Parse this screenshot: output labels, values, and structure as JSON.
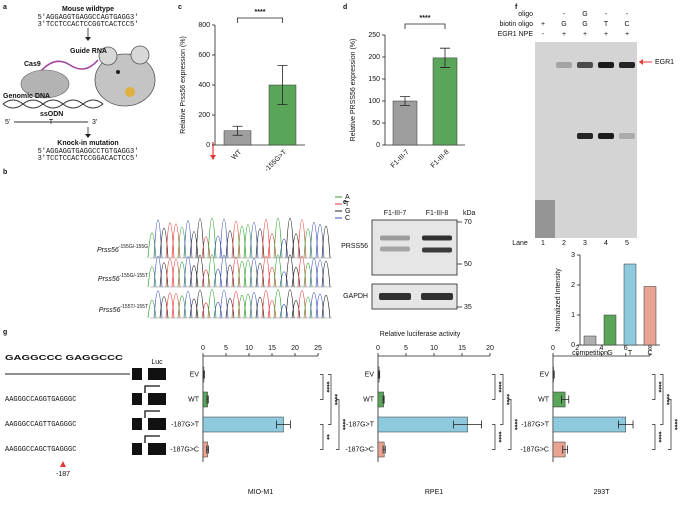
{
  "panel_labels": [
    "a",
    "b",
    "c",
    "d",
    "e",
    "f",
    "g"
  ],
  "panel_a": {
    "title_top": "Mouse wildtype",
    "seq_top": [
      "5'AGGAGGTGAGGCCAGTGAGG3'",
      "3'TCCTCCACTCCGGTCACTCC5'"
    ],
    "guide": "Guide RNA",
    "cas9": "Cas9",
    "genomic": "Genomic DNA",
    "ssodn": "ssODN",
    "ss_ends": [
      "5'",
      "3'"
    ],
    "ss_base": "T",
    "title_bottom": "Knock-in mutation",
    "seq_bottom": [
      "5'AGGAGGTGAGGCCTGTGAGG3'",
      "3'TCCTCCACTCCGGACACTCC5'"
    ]
  },
  "panel_b": {
    "labels": [
      {
        "gene": "Prss56",
        "genotype": "-155G/-155G"
      },
      {
        "gene": "Prss56",
        "genotype": "-155G/-155T"
      },
      {
        "gene": "Prss56",
        "genotype": "-155T/-155T"
      }
    ],
    "legend": [
      "A",
      "T",
      "G",
      "C"
    ],
    "legend_colors": [
      "#2ca02c",
      "#e53935",
      "#222222",
      "#3f51b5"
    ]
  },
  "panel_e": {
    "lanes": [
      "F1-III-7",
      "F1-III-8"
    ],
    "unit": "kDa",
    "proteins": [
      "PRSS56",
      "GAPDH"
    ],
    "markers": [
      70,
      50,
      35
    ]
  },
  "panel_f": {
    "rows": [
      {
        "label": "oligo",
        "cells": [
          null,
          "-",
          "G",
          "-",
          "-"
        ]
      },
      {
        "label": "biotin oligo",
        "cells": [
          "+",
          "G",
          "G",
          "T",
          "C"
        ]
      },
      {
        "label": "EGR1 NPE",
        "cells": [
          "-",
          "+",
          "+",
          "+",
          "+"
        ]
      }
    ],
    "band": "EGR1",
    "lane_title": "Lane",
    "lanes": [
      "1",
      "2",
      "3",
      "4",
      "5"
    ]
  },
  "panel_g": {
    "axis_title": "Relative luciferase activity",
    "logo": "GAGGCCC GAGGCCC",
    "sequences": [
      "AAGGGCCAGGTGAGGGC",
      "AAGGGCCAGTTGAGGGC",
      "AAGGGCCAGCTGAGGGC"
    ],
    "reporter": "Luc",
    "position": "-187"
  },
  "chart_data": [
    {
      "type": "bar",
      "ylabel": "Relative Prss56 expression (%)",
      "categories": [
        "WT",
        "-155G>T"
      ],
      "values": [
        95,
        400
      ],
      "errors": [
        30,
        130
      ],
      "colors": [
        "#9e9e9e",
        "#5aa55a"
      ],
      "ylim": [
        0,
        800
      ],
      "yticks": [
        0,
        200,
        400,
        600,
        800
      ],
      "annotations": [
        "****"
      ]
    },
    {
      "type": "bar",
      "ylabel": "Relative PRSS56 expression (%)",
      "categories": [
        "F1-III-7",
        "F1-III-8"
      ],
      "values": [
        100,
        198
      ],
      "errors": [
        10,
        22
      ],
      "colors": [
        "#9e9e9e",
        "#5aa55a"
      ],
      "ylim": [
        0,
        250
      ],
      "yticks": [
        0,
        50,
        100,
        150,
        200,
        250
      ],
      "annotations": [
        "****"
      ]
    },
    {
      "type": "bar",
      "ylabel": "Normalized Intensity",
      "categories": [
        "competition",
        "G",
        "T",
        "C"
      ],
      "values": [
        0.3,
        1.0,
        2.7,
        1.95
      ],
      "colors": [
        "#b0b0b0",
        "#5aa55a",
        "#8ec9de",
        "#e8a393"
      ],
      "ylim": [
        0,
        3
      ],
      "yticks": [
        0,
        1,
        2,
        3
      ]
    },
    {
      "type": "hbar",
      "title": "MIO-M1",
      "categories": [
        "EV",
        "WT",
        "-187G>T",
        "-187G>C"
      ],
      "values": [
        0.2,
        1,
        17.5,
        1.0
      ],
      "errors": [
        0.1,
        0.15,
        1.5,
        0.2
      ],
      "colors": [
        "#9e9e9e",
        "#5aa55a",
        "#8ec9de",
        "#e8a393"
      ],
      "xlim": [
        0,
        25
      ],
      "xticks": [
        0,
        5,
        10,
        15,
        20,
        25
      ],
      "annotations": [
        "****",
        "****",
        "****",
        "**"
      ]
    },
    {
      "type": "hbar",
      "title": "RPE1",
      "categories": [
        "EV",
        "WT",
        "-187G>T",
        "-187G>C"
      ],
      "values": [
        0.2,
        1,
        16,
        1.1
      ],
      "errors": [
        0.1,
        0.1,
        2.5,
        0.2
      ],
      "colors": [
        "#9e9e9e",
        "#5aa55a",
        "#8ec9de",
        "#e8a393"
      ],
      "xlim": [
        0,
        20
      ],
      "xticks": [
        0,
        5,
        10,
        15,
        20
      ],
      "annotations": [
        "****",
        "****",
        "****",
        "****"
      ]
    },
    {
      "type": "hbar",
      "title": "293T",
      "categories": [
        "EV",
        "WT",
        "-187G>T",
        "-187G>C"
      ],
      "values": [
        0.05,
        1,
        6.0,
        1.0
      ],
      "errors": [
        0.05,
        0.3,
        0.6,
        0.2
      ],
      "colors": [
        "#9e9e9e",
        "#5aa55a",
        "#8ec9de",
        "#e8a393"
      ],
      "xlim": [
        0,
        8
      ],
      "xticks": [
        0,
        2,
        4,
        6,
        8
      ],
      "annotations": [
        "****",
        "****",
        "****",
        "****"
      ]
    }
  ]
}
